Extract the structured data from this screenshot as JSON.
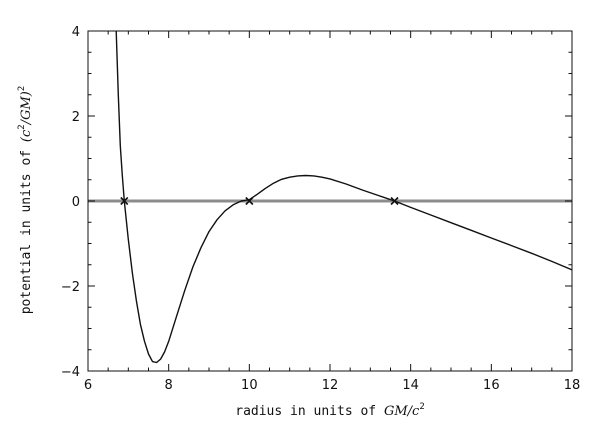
{
  "chart_data": {
    "type": "line",
    "title": "",
    "xlabel": {
      "prefix": "radius in units of ",
      "math": "GM/c",
      "sup": "2"
    },
    "ylabel": {
      "prefix": "potential in units of ",
      "math_open": "(c",
      "sup_inner": "2",
      "math_close": "/GM)",
      "sup_outer": "2"
    },
    "xlim": [
      6,
      18
    ],
    "ylim": [
      -4,
      4
    ],
    "x_ticks": [
      6,
      8,
      10,
      12,
      14,
      16,
      18
    ],
    "x_tick_labels": [
      "6",
      "8",
      "10",
      "12",
      "14",
      "16",
      "18"
    ],
    "y_ticks": [
      -4,
      -2,
      0,
      2,
      4
    ],
    "y_tick_labels": [
      "−4",
      "−2",
      "0",
      "2",
      "4"
    ],
    "grid": false,
    "series": [
      {
        "x": [
          6.7,
          6.75,
          6.8,
          6.85,
          6.9,
          7.0,
          7.1,
          7.2,
          7.3,
          7.4,
          7.5,
          7.6,
          7.7,
          7.8,
          7.9,
          8.0,
          8.2,
          8.4,
          8.6,
          8.8,
          9.0,
          9.2,
          9.4,
          9.6,
          9.8,
          10.0,
          10.2,
          10.4,
          10.6,
          10.8,
          11.0,
          11.2,
          11.4,
          11.6,
          11.8,
          12.0,
          12.4,
          12.8,
          13.2,
          13.6,
          14.0,
          14.5,
          15.0,
          15.5,
          16.0,
          16.5,
          17.0,
          17.5,
          18.0
        ],
        "y": [
          4.0,
          2.5,
          1.3,
          0.6,
          0.0,
          -0.9,
          -1.7,
          -2.35,
          -2.9,
          -3.3,
          -3.6,
          -3.78,
          -3.8,
          -3.72,
          -3.55,
          -3.3,
          -2.7,
          -2.1,
          -1.55,
          -1.1,
          -0.72,
          -0.44,
          -0.23,
          -0.09,
          0.0,
          0.03,
          0.16,
          0.3,
          0.42,
          0.51,
          0.56,
          0.59,
          0.6,
          0.59,
          0.56,
          0.52,
          0.4,
          0.26,
          0.13,
          0.0,
          -0.15,
          -0.33,
          -0.51,
          -0.69,
          -0.87,
          -1.05,
          -1.23,
          -1.42,
          -1.62
        ]
      }
    ],
    "reference_line": {
      "y": 0
    },
    "markers": [
      {
        "x": 6.9,
        "y": 0
      },
      {
        "x": 10.0,
        "y": 0
      },
      {
        "x": 13.6,
        "y": 0
      }
    ],
    "colors": {
      "curve": "#111111",
      "reference_line": "#8c8c8c",
      "marker": "#111111",
      "axes": "#111111"
    }
  }
}
